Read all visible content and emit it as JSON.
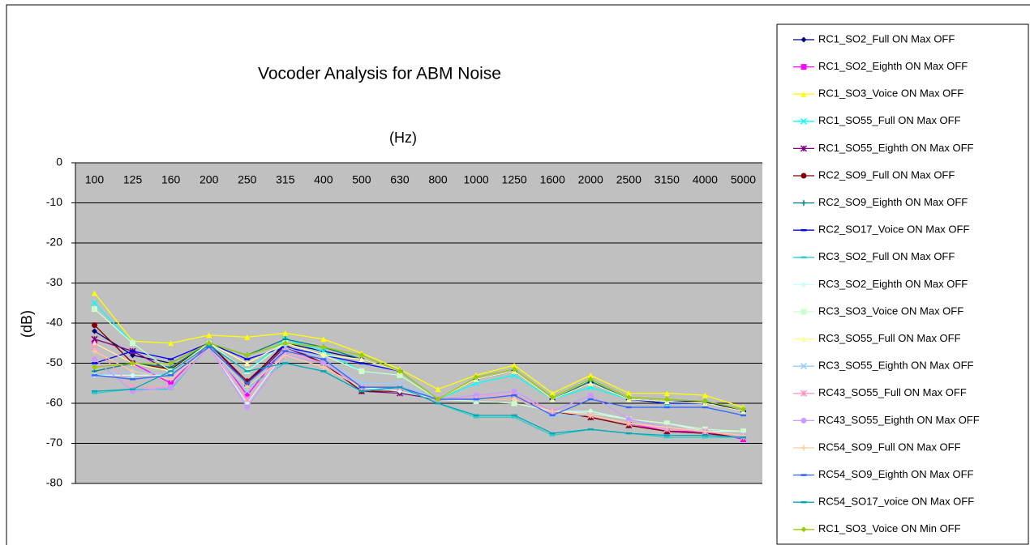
{
  "chart_data": {
    "type": "line",
    "title": "Vocoder Analysis for ABM Noise",
    "x_label": "(Hz)",
    "y_label": "(dB)",
    "categories": [
      "100",
      "125",
      "160",
      "200",
      "250",
      "315",
      "400",
      "500",
      "630",
      "800",
      "1000",
      "1250",
      "1600",
      "2000",
      "2500",
      "3150",
      "4000",
      "5000"
    ],
    "ylim": [
      -80,
      0
    ],
    "yticks": [
      0,
      -10,
      -20,
      -30,
      -40,
      -50,
      -60,
      -70,
      -80
    ],
    "grid": true,
    "legend": "right",
    "series": [
      {
        "name": "RC1_SO2_Full ON Max OFF",
        "color": "#000080",
        "marker": "diamond",
        "values": [
          -42,
          -48,
          -50,
          -45,
          -55,
          -45,
          -47,
          -49,
          -52,
          -59,
          -54,
          -52,
          -59,
          -55,
          -59,
          -59.5,
          -59.5,
          -62
        ]
      },
      {
        "name": "RC1_SO2_Eighth ON Max OFF",
        "color": "#ff00ff",
        "marker": "square",
        "values": [
          -45,
          -50,
          -55,
          -45,
          -58,
          -46,
          -50,
          -56,
          -56,
          -59,
          -59,
          -59,
          -62,
          -63,
          -65,
          -67,
          -67,
          -69
        ]
      },
      {
        "name": "RC1_SO3_Voice ON Max OFF",
        "color": "#ffff00",
        "marker": "triangle",
        "values": [
          -32.5,
          -44.5,
          -45,
          -43,
          -43.5,
          -42.5,
          -44,
          -47.5,
          -51.5,
          -56.5,
          -53,
          -50.5,
          -57.5,
          -53,
          -57.5,
          -57.5,
          -58,
          -61
        ]
      },
      {
        "name": "RC1_SO55_Full ON Max OFF",
        "color": "#00ffff",
        "marker": "x",
        "values": [
          -35,
          -45,
          -52,
          -45,
          -52,
          -44,
          -47,
          -52,
          -53,
          -59,
          -55,
          -53,
          -59,
          -56,
          -59,
          -60,
          -60,
          -62
        ]
      },
      {
        "name": "RC1_SO55_Eighth ON Max OFF",
        "color": "#800080",
        "marker": "star",
        "values": [
          -44,
          -47,
          -52,
          -45,
          -55,
          -46,
          -50,
          -57,
          -57.5,
          -59,
          -59,
          -59,
          -62,
          -63.5,
          -65.5,
          -67,
          -67.5,
          -68.5
        ]
      },
      {
        "name": "RC2_SO9_Full ON Max OFF",
        "color": "#800000",
        "marker": "circle",
        "values": [
          -40.5,
          -50,
          -51.5,
          -45,
          -54.5,
          -45.5,
          -50,
          -57,
          -57,
          -59,
          -59,
          -59,
          -62,
          -63.5,
          -65.5,
          -67,
          -67.5,
          -68.5
        ]
      },
      {
        "name": "RC2_SO9_Eighth ON Max OFF",
        "color": "#008080",
        "marker": "plus",
        "values": [
          -52,
          -50,
          -51,
          -45,
          -48,
          -44,
          -46,
          -49,
          -52,
          -59,
          -54,
          -52,
          -59,
          -54.5,
          -59,
          -59.5,
          -60,
          -62
        ]
      },
      {
        "name": "RC2_SO17_Voice ON Max OFF",
        "color": "#0000ff",
        "marker": "dash",
        "values": [
          -50,
          -47,
          -49,
          -45,
          -49,
          -46,
          -48,
          -50,
          -52,
          -59,
          -54,
          -52,
          -59,
          -55,
          -59,
          -60,
          -60,
          -62
        ]
      },
      {
        "name": "RC3_SO2_Full ON Max OFF",
        "color": "#33cccc",
        "marker": "dash",
        "values": [
          -57.5,
          -56.5,
          -56.5,
          -45.5,
          -56,
          -50,
          -52,
          -57,
          -56,
          -60,
          -63.5,
          -63.5,
          -68,
          -66.5,
          -67.5,
          -68.5,
          -68.5,
          -68.5
        ]
      },
      {
        "name": "RC3_SO2_Eighth ON Max OFF",
        "color": "#ccffff",
        "marker": "diamond",
        "values": [
          -53,
          -53,
          -53,
          -46,
          -60,
          -47,
          -50,
          -56,
          -57,
          -59,
          -59,
          -59,
          -62,
          -62,
          -64,
          -65,
          -67,
          -67
        ]
      },
      {
        "name": "RC3_SO3_Voice ON Max OFF",
        "color": "#ccffcc",
        "marker": "square",
        "values": [
          -36.5,
          -45,
          -52,
          -45,
          -52,
          -45,
          -48,
          -52,
          -53,
          -59,
          -59.5,
          -60,
          -62,
          -62.5,
          -64,
          -65,
          -66.5,
          -67
        ]
      },
      {
        "name": "RC3_SO55_Full ON Max OFF",
        "color": "#ffff99",
        "marker": "triangle",
        "values": [
          -45,
          -50,
          -52,
          -45,
          -50,
          -45,
          -48,
          -49,
          -52,
          -59,
          -54,
          -52,
          -59,
          -55,
          -59,
          -59.5,
          -60,
          -62
        ]
      },
      {
        "name": "RC3_SO55_Eighth ON Max OFF",
        "color": "#99ccff",
        "marker": "x",
        "values": [
          -53,
          -52,
          -53,
          -46,
          -57,
          -46,
          -49,
          -55,
          -55,
          -59,
          -59,
          -58,
          -63,
          -63,
          -65,
          -66,
          -67,
          -68
        ]
      },
      {
        "name": "RC43_SO55_Full ON Max OFF",
        "color": "#ff99cc",
        "marker": "star",
        "values": [
          -46,
          -56,
          -56,
          -46,
          -59,
          -47,
          -50,
          -56,
          -56,
          -59,
          -58,
          -58,
          -62,
          -63,
          -65,
          -66.5,
          -67,
          -68.5
        ]
      },
      {
        "name": "RC43_SO55_Eighth ON Max OFF",
        "color": "#cc99ff",
        "marker": "circle",
        "values": [
          -49,
          -57,
          -56,
          -46,
          -61,
          -48,
          -50,
          -56,
          -56,
          -59,
          -58,
          -57,
          -62,
          -58,
          -64,
          -66,
          -67,
          -68
        ]
      },
      {
        "name": "RC54_SO9_Full ON Max OFF",
        "color": "#ffcc99",
        "marker": "plus",
        "values": [
          -47,
          -52,
          -54,
          -46,
          -56,
          -48,
          -51,
          -56,
          -56,
          -59,
          -59,
          -59,
          -62,
          -63,
          -65,
          -66,
          -67,
          -68
        ]
      },
      {
        "name": "RC54_SO9_Eighth ON Max OFF",
        "color": "#3366ff",
        "marker": "dash",
        "values": [
          -53,
          -54,
          -53,
          -46,
          -55,
          -47,
          -49,
          -56,
          -56,
          -59,
          -59,
          -58,
          -63,
          -59,
          -61,
          -61,
          -61,
          -63
        ]
      },
      {
        "name": "RC54_SO17_voice ON Max OFF",
        "color": "#00a8b8",
        "marker": "dash",
        "values": [
          -57,
          -56.5,
          -52,
          -45.5,
          -52,
          -50,
          -52,
          -57,
          -56,
          -60,
          -63,
          -63,
          -67.5,
          -66.5,
          -67.5,
          -68,
          -68,
          -68.5
        ]
      },
      {
        "name": "RC1_SO3_Voice ON Min OFF",
        "color": "#99cc00",
        "marker": "diamond",
        "values": [
          -51,
          -50,
          -50,
          -45,
          -48,
          -45,
          -46,
          -48,
          -52,
          -59,
          -53.5,
          -51.5,
          -58.5,
          -54,
          -58.5,
          -59,
          -59.5,
          -61.5
        ]
      }
    ]
  }
}
